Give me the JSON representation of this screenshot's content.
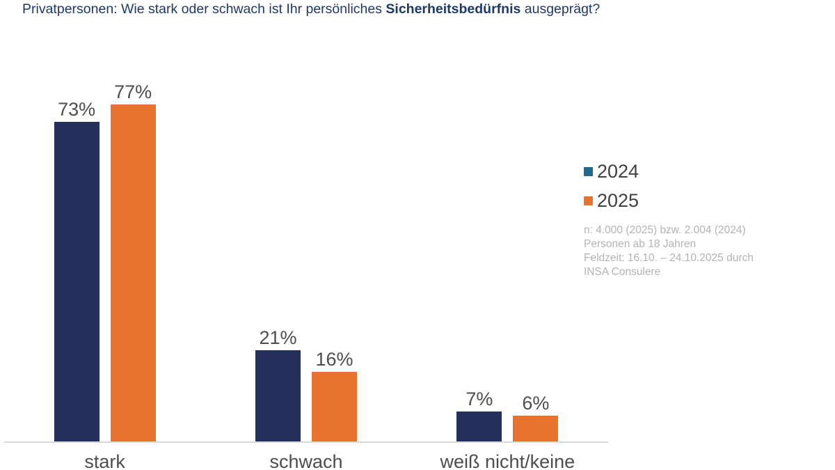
{
  "title": {
    "prefix": "Privatpersonen: Wie stark oder schwach ist Ihr persönliches ",
    "bold": "Sicherheitsbedürfnis",
    "suffix": " ausgeprägt?"
  },
  "legend": [
    {
      "label": "2024",
      "color": "#1F6A8C"
    },
    {
      "label": "2025",
      "color": "#E8732F"
    }
  ],
  "note": {
    "lines": [
      "n: 4.000 (2025) bzw. 2.004 (2024)",
      "Personen ab 18 Jahren",
      "Feldzeit: 16.10. – 24.10.2025 durch",
      "INSA Consulere"
    ]
  },
  "chart_data": {
    "type": "bar",
    "title": "Privatpersonen: Wie stark oder schwach ist Ihr persönliches Sicherheitsbedürfnis ausgeprägt?",
    "categories": [
      "stark",
      "schwach",
      "weiß nicht/keine"
    ],
    "series": [
      {
        "name": "2024",
        "color": "#23305B",
        "values": [
          73,
          21,
          7
        ]
      },
      {
        "name": "2025",
        "color": "#E8732F",
        "values": [
          77,
          16,
          6
        ]
      }
    ],
    "value_suffix": "%",
    "xlabel": "",
    "ylabel": "",
    "ylim": [
      0,
      100
    ],
    "grid": false,
    "y_axis_visible": false,
    "legend_position": "right"
  },
  "colors": {
    "title_text": "#1F3864",
    "bar_2024": "#23305B",
    "bar_2025": "#E8732F",
    "legend_swatch_2024": "#1F6A8C",
    "label_text": "#4D4D4D",
    "note_text": "#B3B3B3",
    "axis_line": "#D9D9D9"
  }
}
